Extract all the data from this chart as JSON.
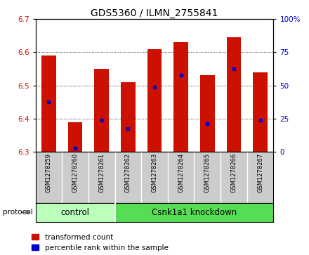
{
  "title": "GDS5360 / ILMN_2755841",
  "samples": [
    "GSM1278259",
    "GSM1278260",
    "GSM1278261",
    "GSM1278262",
    "GSM1278263",
    "GSM1278264",
    "GSM1278265",
    "GSM1278266",
    "GSM1278267"
  ],
  "bar_tops": [
    6.59,
    6.39,
    6.55,
    6.51,
    6.61,
    6.63,
    6.53,
    6.645,
    6.54
  ],
  "bar_bottom": 6.3,
  "blue_positions": [
    6.45,
    6.31,
    6.395,
    6.37,
    6.495,
    6.53,
    6.385,
    6.55,
    6.395
  ],
  "ylim_left": [
    6.3,
    6.7
  ],
  "ylim_right": [
    0,
    100
  ],
  "yticks_left": [
    6.3,
    6.4,
    6.5,
    6.6,
    6.7
  ],
  "yticks_right": [
    0,
    25,
    50,
    75,
    100
  ],
  "bar_color": "#cc1100",
  "blue_color": "#0000cc",
  "control_color": "#bbffbb",
  "knockdown_color": "#55dd55",
  "control_samples": 3,
  "knockdown_samples": 6,
  "control_label": "control",
  "knockdown_label": "Csnk1a1 knockdown",
  "protocol_label": "protocol",
  "legend_red_label": "transformed count",
  "legend_blue_label": "percentile rank within the sample",
  "tick_area_color": "#cccccc",
  "bar_width": 0.55
}
